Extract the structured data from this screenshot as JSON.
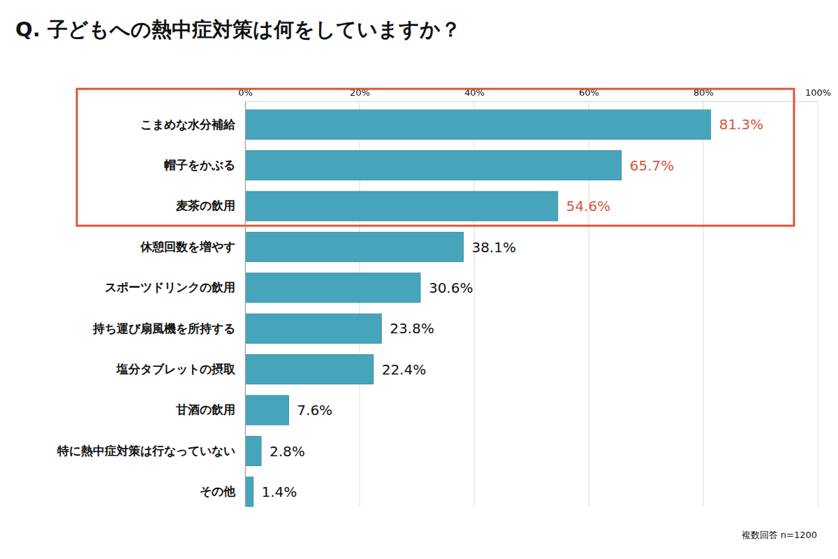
{
  "chart_data": {
    "type": "bar",
    "orientation": "horizontal",
    "title": "Q. 子どもへの熱中症対策は何をしていますか？",
    "annotation": "複数回答 n=1200",
    "categories": [
      "こまめな水分補給",
      "帽子をかぶる",
      "麦茶の飲用",
      "休憩回数を増やす",
      "スポーツドリンクの飲用",
      "持ち運び扇風機を所持する",
      "塩分タブレットの摂取",
      "甘酒の飲用",
      "特に熱中症対策は行なっていない",
      "その他"
    ],
    "values": [
      81.3,
      65.7,
      54.6,
      38.1,
      30.6,
      23.8,
      22.4,
      7.6,
      2.8,
      1.4
    ],
    "value_labels": [
      "81.3%",
      "65.7%",
      "54.6%",
      "38.1%",
      "30.6%",
      "23.8%",
      "22.4%",
      "7.6%",
      "2.8%",
      "1.4%"
    ],
    "color": "#47a5bb",
    "xlim": [
      0,
      100
    ],
    "xticks": [
      {
        "value": 0,
        "label": "0%"
      },
      {
        "value": 20,
        "label": "20%"
      },
      {
        "value": 40,
        "label": "40%"
      },
      {
        "value": 60,
        "label": "60%"
      },
      {
        "value": 80,
        "label": "80%"
      },
      {
        "value": 100,
        "label": "100%"
      }
    ],
    "grid": true,
    "data_labels": true
  }
}
